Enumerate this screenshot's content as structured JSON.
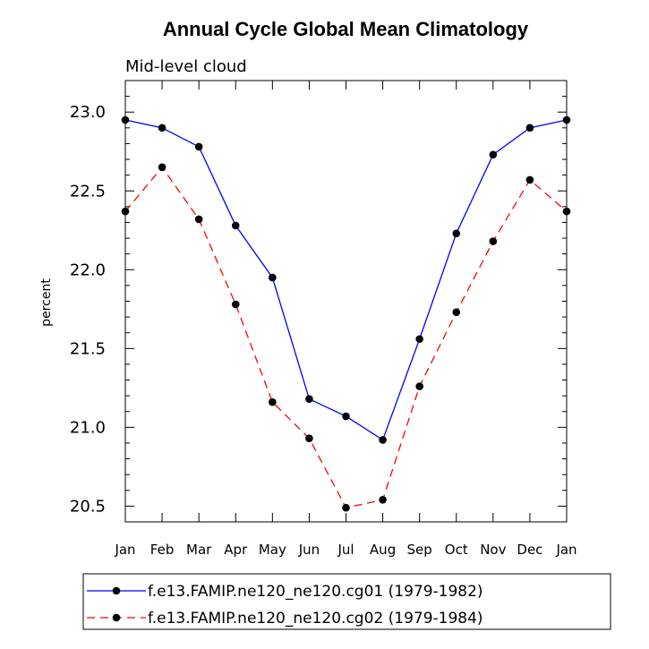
{
  "chart_data": {
    "type": "line",
    "title": "Annual Cycle Global Mean Climatology",
    "subtitle": "Mid-level cloud",
    "xlabel": "",
    "ylabel": "percent",
    "categories": [
      "Jan",
      "Feb",
      "Mar",
      "Apr",
      "May",
      "Jun",
      "Jul",
      "Aug",
      "Sep",
      "Oct",
      "Nov",
      "Dec",
      "Jan"
    ],
    "ylim": [
      20.4,
      23.2
    ],
    "yticks": [
      20.5,
      21.0,
      21.5,
      22.0,
      22.5,
      23.0
    ],
    "ytick_labels": [
      "20.5",
      "21.0",
      "21.5",
      "22.0",
      "22.5",
      "23.0"
    ],
    "grid": false,
    "legend_position": "bottom",
    "series": [
      {
        "name": "f.e13.FAMIP.ne120_ne120.cg01 (1979-1982)",
        "color": "#0000ff",
        "dash": "solid",
        "marker": "filled-circle",
        "values": [
          22.95,
          22.9,
          22.78,
          22.28,
          21.95,
          21.18,
          21.07,
          20.92,
          21.56,
          22.23,
          22.73,
          22.9,
          22.95
        ]
      },
      {
        "name": "f.e13.FAMIP.ne120_ne120.cg02 (1979-1984)",
        "color": "#ff0000",
        "dash": "dashed",
        "marker": "filled-circle",
        "values": [
          22.37,
          22.65,
          22.32,
          21.78,
          21.16,
          20.93,
          20.49,
          20.54,
          21.26,
          21.73,
          22.18,
          22.57,
          22.37
        ]
      }
    ]
  }
}
